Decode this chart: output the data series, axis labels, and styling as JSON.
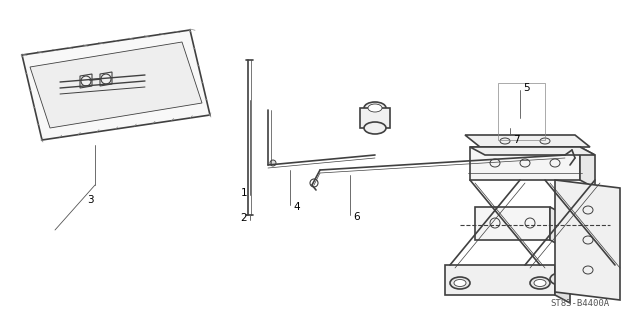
{
  "background_color": "#ffffff",
  "line_color": "#404040",
  "label_color": "#000000",
  "diagram_code": "ST83-B4400A",
  "figsize": [
    6.37,
    3.2
  ],
  "dpi": 100,
  "thin_lw": 0.7,
  "thick_lw": 1.2,
  "label_fs": 7.5
}
